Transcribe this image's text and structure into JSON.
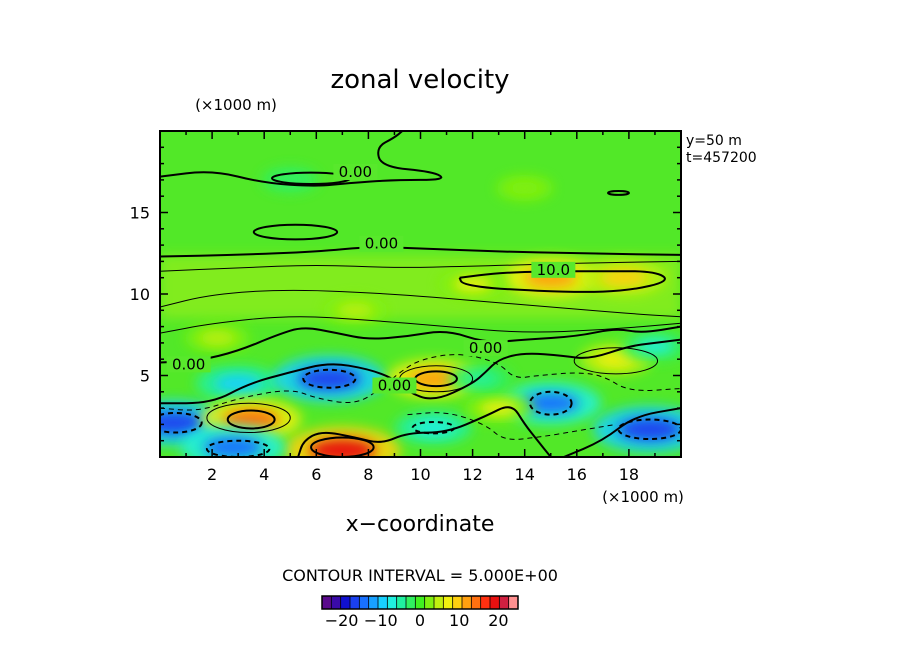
{
  "chart_data": {
    "type": "heatmap",
    "title": "zonal velocity",
    "xlabel": "x−coordinate",
    "x_unit": "(×1000 m)",
    "y_unit": "(×1000 m)",
    "xlim": [
      0,
      20
    ],
    "ylim": [
      0,
      20
    ],
    "x_ticks": [
      2,
      4,
      6,
      8,
      10,
      12,
      14,
      16,
      18
    ],
    "y_ticks": [
      5,
      10,
      15
    ],
    "annotation_y": "y=50  m",
    "annotation_t": "t=457200",
    "contour_interval_text": "CONTOUR INTERVAL = 5.000E+00",
    "contour_labels": [
      {
        "text": "0.00",
        "x": 7.5,
        "y": 17.3
      },
      {
        "text": "0.00",
        "x": 8.5,
        "y": 12.9
      },
      {
        "text": "10.0",
        "x": 15.1,
        "y": 11.3
      },
      {
        "text": "0.00",
        "x": 1.1,
        "y": 5.5
      },
      {
        "text": "0.00",
        "x": 12.5,
        "y": 6.5
      },
      {
        "text": "0.00",
        "x": 9.0,
        "y": 4.2
      }
    ],
    "colorbar": {
      "range": [
        -25,
        25
      ],
      "ticks": [
        -20,
        -10,
        0,
        10,
        20
      ],
      "tick_labels": [
        "−20",
        "−10",
        "0",
        "10",
        "20"
      ],
      "colors": [
        "#5a0a8c",
        "#3a0aa8",
        "#1010d0",
        "#1a40f0",
        "#1870ff",
        "#18a0ff",
        "#18d0ff",
        "#20f0e0",
        "#20f0a0",
        "#30f060",
        "#40f020",
        "#80f010",
        "#c0f010",
        "#f0f010",
        "#ffd010",
        "#ffa010",
        "#ff7010",
        "#ff3010",
        "#e81010",
        "#d02040",
        "#ff9090"
      ]
    },
    "features": [
      {
        "x": 0.5,
        "y": 2.1,
        "v": -16
      },
      {
        "x": 3.0,
        "y": 4.5,
        "v": -10
      },
      {
        "x": 6.5,
        "y": 4.8,
        "v": -17
      },
      {
        "x": 10.5,
        "y": 4.8,
        "v": 12
      },
      {
        "x": 3.5,
        "y": 2.3,
        "v": 14
      },
      {
        "x": 7.0,
        "y": 0.4,
        "v": 18
      },
      {
        "x": 2.8,
        "y": 0.6,
        "v": -15
      },
      {
        "x": 10.5,
        "y": 1.8,
        "v": -8
      },
      {
        "x": 15.0,
        "y": 3.3,
        "v": -14
      },
      {
        "x": 18.8,
        "y": 1.7,
        "v": -17
      },
      {
        "x": 15.0,
        "y": 11.0,
        "v": 12
      },
      {
        "x": 17.8,
        "y": 11.0,
        "v": 10
      },
      {
        "x": 12.0,
        "y": 10.6,
        "v": 6
      },
      {
        "x": 7.5,
        "y": 9.0,
        "v": 5
      },
      {
        "x": 2.2,
        "y": 7.3,
        "v": 5
      },
      {
        "x": 17.5,
        "y": 6.0,
        "v": 7
      },
      {
        "x": 19.0,
        "y": 6.8,
        "v": -6
      },
      {
        "x": 5.0,
        "y": 17.0,
        "v": -3
      },
      {
        "x": 14.0,
        "y": 16.5,
        "v": 3
      },
      {
        "x": 13.0,
        "y": 3.0,
        "v": 6
      },
      {
        "x": 12.3,
        "y": 4.8,
        "v": -5
      }
    ]
  }
}
